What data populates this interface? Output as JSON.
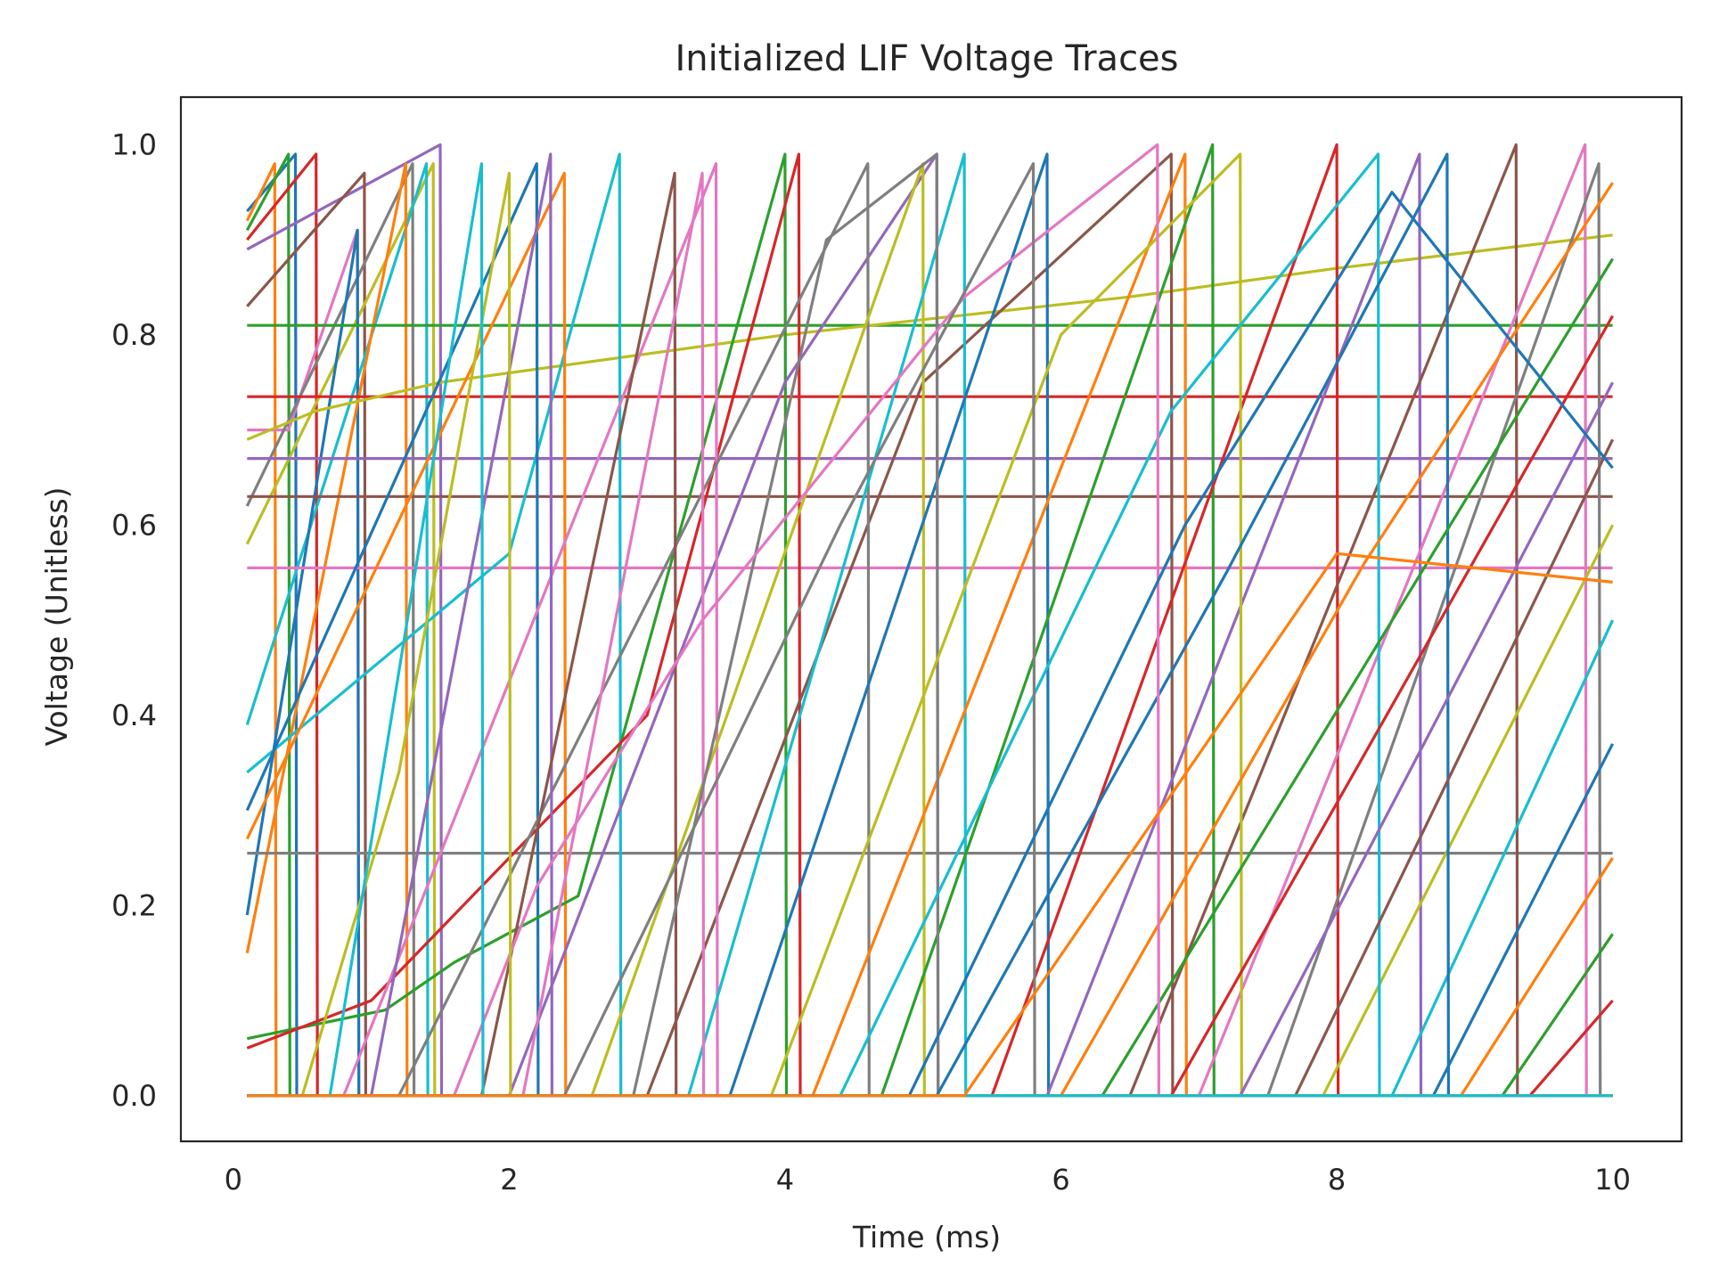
{
  "chart_data": {
    "type": "line",
    "title": "Initialized LIF Voltage Traces",
    "xlabel": "Time (ms)",
    "ylabel": "Voltage (Unitless)",
    "xlim": [
      -0.38,
      10.5
    ],
    "ylim": [
      -0.048,
      1.05
    ],
    "x_ticks": [
      0,
      2,
      4,
      6,
      8,
      10
    ],
    "x_tick_labels": [
      "0",
      "2",
      "4",
      "6",
      "8",
      "10"
    ],
    "y_ticks": [
      0.0,
      0.2,
      0.4,
      0.6,
      0.8,
      1.0
    ],
    "y_tick_labels": [
      "0.0",
      "0.2",
      "0.4",
      "0.6",
      "0.8",
      "1.0"
    ],
    "grid": false,
    "legend": "none",
    "t_start": 0.1,
    "t_end": 10.0,
    "palette": [
      "#1f77b4",
      "#ff7f0e",
      "#2ca02c",
      "#d62728",
      "#9467bd",
      "#8c564b",
      "#e377c2",
      "#7f7f7f",
      "#bcbd22",
      "#17becf"
    ],
    "series": [
      {
        "values": [
          [
            0.1,
            0.93
          ],
          [
            0.45,
            0.99
          ],
          [
            0.46,
            0.0
          ],
          [
            10.0,
            0.0
          ]
        ]
      },
      {
        "values": [
          [
            0.1,
            0.92
          ],
          [
            0.3,
            0.98
          ],
          [
            0.31,
            0.0
          ],
          [
            10.0,
            0.0
          ]
        ]
      },
      {
        "values": [
          [
            0.1,
            0.91
          ],
          [
            0.4,
            0.99
          ],
          [
            0.41,
            0.0
          ],
          [
            10.0,
            0.0
          ]
        ]
      },
      {
        "values": [
          [
            0.1,
            0.9
          ],
          [
            0.6,
            0.99
          ],
          [
            0.61,
            0.0
          ],
          [
            10.0,
            0.0
          ]
        ]
      },
      {
        "values": [
          [
            0.1,
            0.89
          ],
          [
            1.5,
            1.0
          ],
          [
            1.51,
            0.0
          ],
          [
            10.0,
            0.0
          ]
        ]
      },
      {
        "values": [
          [
            0.1,
            0.83
          ],
          [
            0.95,
            0.97
          ],
          [
            0.96,
            0.0
          ],
          [
            10.0,
            0.0
          ]
        ]
      },
      {
        "values": [
          [
            0.1,
            0.7
          ],
          [
            0.4,
            0.7
          ],
          [
            0.9,
            0.91
          ],
          [
            0.91,
            0.0
          ],
          [
            10.0,
            0.0
          ]
        ]
      },
      {
        "values": [
          [
            0.1,
            0.62
          ],
          [
            1.3,
            0.98
          ],
          [
            1.31,
            0.0
          ],
          [
            10.0,
            0.0
          ]
        ]
      },
      {
        "values": [
          [
            0.1,
            0.58
          ],
          [
            1.45,
            0.98
          ],
          [
            1.46,
            0.0
          ],
          [
            10.0,
            0.0
          ]
        ]
      },
      {
        "values": [
          [
            0.1,
            0.39
          ],
          [
            1.4,
            0.98
          ],
          [
            1.41,
            0.0
          ],
          [
            10.0,
            0.0
          ]
        ]
      },
      {
        "values": [
          [
            0.1,
            0.19
          ],
          [
            0.9,
            0.91
          ],
          [
            0.91,
            0.0
          ],
          [
            10.0,
            0.0
          ]
        ]
      },
      {
        "values": [
          [
            0.1,
            0.15
          ],
          [
            1.25,
            0.98
          ],
          [
            1.26,
            0.0
          ],
          [
            10.0,
            0.0
          ]
        ]
      },
      {
        "values": [
          [
            0.1,
            0.81
          ],
          [
            10.0,
            0.81
          ]
        ]
      },
      {
        "values": [
          [
            0.1,
            0.735
          ],
          [
            10.0,
            0.735
          ]
        ]
      },
      {
        "values": [
          [
            0.1,
            0.67
          ],
          [
            10.0,
            0.67
          ]
        ]
      },
      {
        "values": [
          [
            0.1,
            0.63
          ],
          [
            10.0,
            0.63
          ]
        ]
      },
      {
        "values": [
          [
            0.1,
            0.555
          ],
          [
            10.0,
            0.555
          ]
        ]
      },
      {
        "values": [
          [
            0.1,
            0.255
          ],
          [
            10.0,
            0.255
          ]
        ]
      },
      {
        "values": [
          [
            0.1,
            0.69
          ],
          [
            0.6,
            0.72
          ],
          [
            1.5,
            0.75
          ],
          [
            4.0,
            0.8
          ],
          [
            6.5,
            0.84
          ],
          [
            8.0,
            0.87
          ],
          [
            10.0,
            0.905
          ]
        ]
      },
      {
        "values": [
          [
            0.1,
            0.34
          ],
          [
            2.0,
            0.57
          ],
          [
            2.8,
            0.99
          ],
          [
            2.81,
            0.0
          ],
          [
            10.0,
            0.0
          ]
        ]
      },
      {
        "values": [
          [
            0.1,
            0.3
          ],
          [
            2.2,
            0.98
          ],
          [
            2.21,
            0.0
          ],
          [
            10.0,
            0.0
          ]
        ]
      },
      {
        "values": [
          [
            0.1,
            0.27
          ],
          [
            2.4,
            0.97
          ],
          [
            2.41,
            0.0
          ],
          [
            10.0,
            0.0
          ]
        ]
      },
      {
        "values": [
          [
            0.1,
            0.06
          ],
          [
            1.1,
            0.09
          ],
          [
            1.6,
            0.14
          ],
          [
            2.5,
            0.21
          ],
          [
            4.0,
            0.99
          ],
          [
            4.01,
            0.0
          ],
          [
            10.0,
            0.0
          ]
        ]
      },
      {
        "values": [
          [
            0.1,
            0.05
          ],
          [
            1.0,
            0.1
          ],
          [
            3.0,
            0.4
          ],
          [
            4.1,
            0.99
          ],
          [
            4.11,
            0.0
          ],
          [
            10.0,
            0.0
          ]
        ]
      },
      {
        "values": [
          [
            0.1,
            0.0
          ],
          [
            2.0,
            0.0
          ],
          [
            4.0,
            0.75
          ],
          [
            5.1,
            0.99
          ],
          [
            5.11,
            0.0
          ],
          [
            10.0,
            0.0
          ]
        ]
      },
      {
        "values": [
          [
            0.1,
            0.0
          ],
          [
            3.0,
            0.0
          ],
          [
            5.0,
            0.75
          ],
          [
            6.8,
            0.99
          ],
          [
            6.81,
            0.0
          ],
          [
            10.0,
            0.0
          ]
        ]
      },
      {
        "values": [
          [
            0.1,
            0.0
          ],
          [
            0.8,
            0.0
          ],
          [
            3.5,
            0.98
          ],
          [
            3.51,
            0.0
          ],
          [
            10.0,
            0.0
          ]
        ]
      },
      {
        "values": [
          [
            0.1,
            0.0
          ],
          [
            1.2,
            0.0
          ],
          [
            4.6,
            0.98
          ],
          [
            4.61,
            0.0
          ],
          [
            10.0,
            0.0
          ]
        ]
      },
      {
        "values": [
          [
            0.1,
            0.0
          ],
          [
            2.6,
            0.0
          ],
          [
            5.0,
            0.98
          ],
          [
            5.01,
            0.0
          ],
          [
            10.0,
            0.0
          ]
        ]
      },
      {
        "values": [
          [
            0.1,
            0.0
          ],
          [
            3.3,
            0.0
          ],
          [
            5.3,
            0.99
          ],
          [
            5.31,
            0.0
          ],
          [
            10.0,
            0.0
          ]
        ]
      },
      {
        "values": [
          [
            0.1,
            0.0
          ],
          [
            3.6,
            0.0
          ],
          [
            5.9,
            0.99
          ],
          [
            5.91,
            0.0
          ],
          [
            10.0,
            0.0
          ]
        ]
      },
      {
        "values": [
          [
            0.1,
            0.0
          ],
          [
            4.2,
            0.0
          ],
          [
            6.9,
            0.99
          ],
          [
            6.91,
            0.0
          ],
          [
            10.0,
            0.0
          ]
        ]
      },
      {
        "values": [
          [
            0.1,
            0.0
          ],
          [
            4.7,
            0.0
          ],
          [
            7.1,
            1.0
          ],
          [
            7.11,
            0.0
          ],
          [
            10.0,
            0.0
          ]
        ]
      },
      {
        "values": [
          [
            0.1,
            0.0
          ],
          [
            5.5,
            0.0
          ],
          [
            8.0,
            1.0
          ],
          [
            8.01,
            0.0
          ],
          [
            10.0,
            0.0
          ]
        ]
      },
      {
        "values": [
          [
            0.1,
            0.0
          ],
          [
            5.9,
            0.0
          ],
          [
            8.6,
            0.99
          ],
          [
            8.61,
            0.0
          ],
          [
            10.0,
            0.0
          ]
        ]
      },
      {
        "values": [
          [
            0.1,
            0.0
          ],
          [
            6.5,
            0.0
          ],
          [
            9.3,
            1.0
          ],
          [
            9.31,
            0.0
          ],
          [
            10.0,
            0.0
          ]
        ]
      },
      {
        "values": [
          [
            0.1,
            0.0
          ],
          [
            7.0,
            0.0
          ],
          [
            9.8,
            1.0
          ],
          [
            9.81,
            0.0
          ],
          [
            10.0,
            0.0
          ]
        ]
      },
      {
        "values": [
          [
            0.1,
            0.0
          ],
          [
            7.5,
            0.0
          ],
          [
            9.9,
            0.98
          ],
          [
            9.91,
            0.0
          ],
          [
            10.0,
            0.0
          ]
        ]
      },
      {
        "values": [
          [
            0.1,
            0.0
          ],
          [
            7.9,
            0.0
          ],
          [
            10.0,
            0.6
          ]
        ]
      },
      {
        "values": [
          [
            0.1,
            0.0
          ],
          [
            8.4,
            0.0
          ],
          [
            10.0,
            0.5
          ]
        ]
      },
      {
        "values": [
          [
            0.1,
            0.0
          ],
          [
            8.7,
            0.0
          ],
          [
            10.0,
            0.37
          ]
        ]
      },
      {
        "values": [
          [
            0.1,
            0.0
          ],
          [
            8.9,
            0.0
          ],
          [
            10.0,
            0.25
          ]
        ]
      },
      {
        "values": [
          [
            0.1,
            0.0
          ],
          [
            9.2,
            0.0
          ],
          [
            10.0,
            0.17
          ]
        ]
      },
      {
        "values": [
          [
            0.1,
            0.0
          ],
          [
            9.4,
            0.0
          ],
          [
            10.0,
            0.1
          ]
        ]
      },
      {
        "values": [
          [
            0.1,
            0.0
          ],
          [
            1.0,
            0.0
          ],
          [
            2.3,
            0.99
          ],
          [
            2.31,
            0.0
          ],
          [
            10.0,
            0.0
          ]
        ]
      },
      {
        "values": [
          [
            0.1,
            0.0
          ],
          [
            1.8,
            0.0
          ],
          [
            3.2,
            0.97
          ],
          [
            3.21,
            0.0
          ],
          [
            10.0,
            0.0
          ]
        ]
      },
      {
        "values": [
          [
            0.1,
            0.0
          ],
          [
            2.1,
            0.0
          ],
          [
            3.4,
            0.97
          ],
          [
            3.41,
            0.0
          ],
          [
            10.0,
            0.0
          ]
        ]
      },
      {
        "values": [
          [
            0.1,
            0.0
          ],
          [
            2.9,
            0.0
          ],
          [
            4.3,
            0.9
          ],
          [
            5.1,
            0.99
          ],
          [
            5.11,
            0.0
          ],
          [
            10.0,
            0.0
          ]
        ]
      },
      {
        "values": [
          [
            0.1,
            0.0
          ],
          [
            3.9,
            0.0
          ],
          [
            6.0,
            0.8
          ],
          [
            7.3,
            0.99
          ],
          [
            7.31,
            0.0
          ],
          [
            10.0,
            0.0
          ]
        ]
      },
      {
        "values": [
          [
            0.1,
            0.0
          ],
          [
            4.4,
            0.0
          ],
          [
            6.8,
            0.72
          ],
          [
            8.3,
            0.99
          ],
          [
            8.31,
            0.0
          ],
          [
            10.0,
            0.0
          ]
        ]
      },
      {
        "values": [
          [
            0.1,
            0.0
          ],
          [
            5.1,
            0.0
          ],
          [
            7.2,
            0.55
          ],
          [
            8.8,
            0.99
          ],
          [
            8.81,
            0.0
          ],
          [
            10.0,
            0.0
          ]
        ]
      },
      {
        "values": [
          [
            0.1,
            0.0
          ],
          [
            6.0,
            0.0
          ],
          [
            8.2,
            0.56
          ],
          [
            10.0,
            0.96
          ]
        ]
      },
      {
        "values": [
          [
            0.1,
            0.0
          ],
          [
            6.3,
            0.0
          ],
          [
            10.0,
            0.88
          ]
        ]
      },
      {
        "values": [
          [
            0.1,
            0.0
          ],
          [
            6.8,
            0.0
          ],
          [
            10.0,
            0.82
          ]
        ]
      },
      {
        "values": [
          [
            0.1,
            0.0
          ],
          [
            7.3,
            0.0
          ],
          [
            10.0,
            0.75
          ]
        ]
      },
      {
        "values": [
          [
            0.1,
            0.0
          ],
          [
            7.7,
            0.0
          ],
          [
            10.0,
            0.69
          ]
        ]
      },
      {
        "values": [
          [
            0.1,
            0.0
          ],
          [
            1.6,
            0.0
          ],
          [
            2.2,
            0.22
          ],
          [
            3.4,
            0.5
          ],
          [
            5.3,
            0.84
          ],
          [
            6.7,
            1.0
          ],
          [
            6.71,
            0.0
          ],
          [
            10.0,
            0.0
          ]
        ]
      },
      {
        "values": [
          [
            0.1,
            0.0
          ],
          [
            2.4,
            0.0
          ],
          [
            4.4,
            0.6
          ],
          [
            5.8,
            0.98
          ],
          [
            5.81,
            0.0
          ],
          [
            10.0,
            0.0
          ]
        ]
      },
      {
        "values": [
          [
            0.1,
            0.0
          ],
          [
            0.5,
            0.0
          ],
          [
            1.2,
            0.34
          ],
          [
            2.0,
            0.97
          ],
          [
            2.01,
            0.0
          ],
          [
            10.0,
            0.0
          ]
        ]
      },
      {
        "values": [
          [
            0.1,
            0.0
          ],
          [
            0.7,
            0.0
          ],
          [
            1.8,
            0.98
          ],
          [
            1.81,
            0.0
          ],
          [
            10.0,
            0.0
          ]
        ]
      },
      {
        "values": [
          [
            0.1,
            0.0
          ],
          [
            4.9,
            0.0
          ],
          [
            6.9,
            0.6
          ],
          [
            8.4,
            0.95
          ],
          [
            10.0,
            0.66
          ]
        ]
      },
      {
        "values": [
          [
            0.1,
            0.0
          ],
          [
            5.3,
            0.0
          ],
          [
            8.0,
            0.57
          ],
          [
            10.0,
            0.54
          ]
        ]
      }
    ]
  }
}
